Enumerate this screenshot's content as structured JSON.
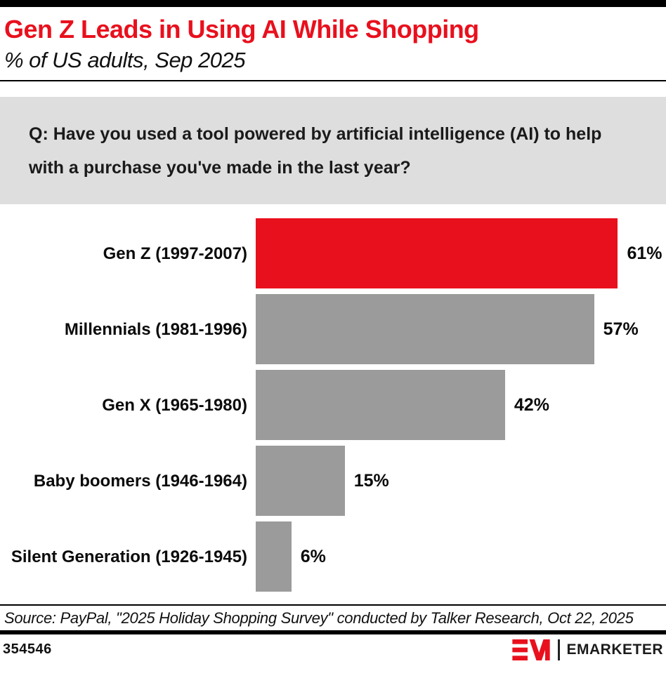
{
  "header": {
    "title": "Gen Z Leads in Using AI While Shopping",
    "subtitle": "% of US adults, Sep 2025"
  },
  "question": "Q: Have you used a tool powered by artificial intelligence (AI) to help with a purchase you've made in the last year?",
  "chart_data": {
    "type": "bar",
    "orientation": "horizontal",
    "title": "Gen Z Leads in Using AI While Shopping",
    "subtitle": "% of US adults, Sep 2025",
    "categories": [
      "Gen Z (1997-2007)",
      "Millennials (1981-1996)",
      "Gen X (1965-1980)",
      "Baby boomers (1946-1964)",
      "Silent Generation (1926-1945)"
    ],
    "values": [
      61,
      57,
      42,
      15,
      6
    ],
    "value_labels": [
      "61%",
      "57%",
      "42%",
      "15%",
      "6%"
    ],
    "unit": "%",
    "xlim": [
      0,
      68
    ],
    "grid": false,
    "legend": "none",
    "highlight_index": 0,
    "colors": {
      "highlight": "#E9101D",
      "default": "#9B9B9B"
    }
  },
  "source": "Source: PayPal, \"2025 Holiday Shopping Survey\" conducted by Talker Research, Oct 22, 2025",
  "footer": {
    "chart_id": "354546",
    "brand": "EMARKETER"
  },
  "colors": {
    "accent_red": "#E9101D",
    "bar_gray": "#9B9B9B",
    "question_box_bg": "#DEDEDE",
    "text": "#000000"
  }
}
